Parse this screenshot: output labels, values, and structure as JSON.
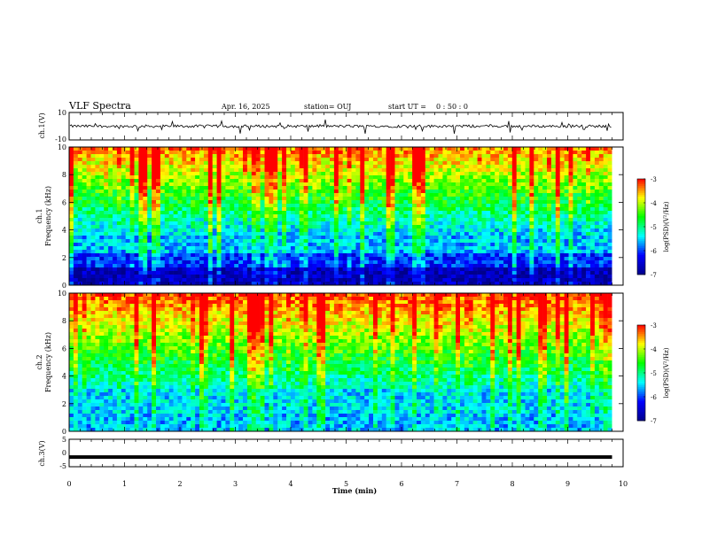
{
  "header": {
    "title": "VLF Spectra",
    "date": "Apr. 16, 2025",
    "station": "station= OUJ",
    "start_label": "start UT =",
    "start_time": "0 : 50 : 0"
  },
  "chart_data": [
    {
      "type": "line",
      "ylabel": "ch.1(V)",
      "ylim": [
        -10,
        10
      ],
      "yticks": [
        "10",
        "-10"
      ],
      "xlim": [
        0,
        9.8
      ],
      "description_values": {
        "baseline": 0,
        "amplitude": 2
      }
    },
    {
      "type": "heatmap",
      "ylabel_top": "ch.1",
      "ylabel": "Frequency (kHz)",
      "ylim": [
        0,
        10
      ],
      "yticks": [
        "0",
        "2",
        "4",
        "6",
        "8",
        "10"
      ],
      "colorbar": {
        "label": "log(PSD)(V²/Hz)",
        "range": [
          -7,
          -3
        ],
        "ticks": [
          "-3",
          "-4",
          "-5",
          "-6",
          "-7"
        ]
      }
    },
    {
      "type": "heatmap",
      "ylabel_top": "ch.2",
      "ylabel": "Frequency (kHz)",
      "ylim": [
        0,
        10
      ],
      "yticks": [
        "0",
        "2",
        "4",
        "6",
        "8",
        "10"
      ],
      "colorbar": {
        "label": "log(PSD)(V²/Hz)",
        "range": [
          -7,
          -3
        ],
        "ticks": [
          "-3",
          "-4",
          "-5",
          "-6",
          "-7"
        ]
      }
    },
    {
      "type": "line",
      "ylabel": "ch.3(V)",
      "ylim": [
        -5,
        5
      ],
      "yticks": [
        "5",
        "0",
        "-5"
      ],
      "values": {
        "constant": -1.5
      },
      "xlabel": "Time (min)",
      "xlim": [
        0,
        10
      ],
      "xticks": [
        "0",
        "1",
        "2",
        "3",
        "4",
        "5",
        "6",
        "7",
        "8",
        "9",
        "10"
      ]
    }
  ],
  "colors": {
    "spectrum": [
      "#00008b",
      "#0000ff",
      "#00ffff",
      "#00ff00",
      "#ffff00",
      "#ff0000"
    ],
    "trace": "#000000"
  }
}
